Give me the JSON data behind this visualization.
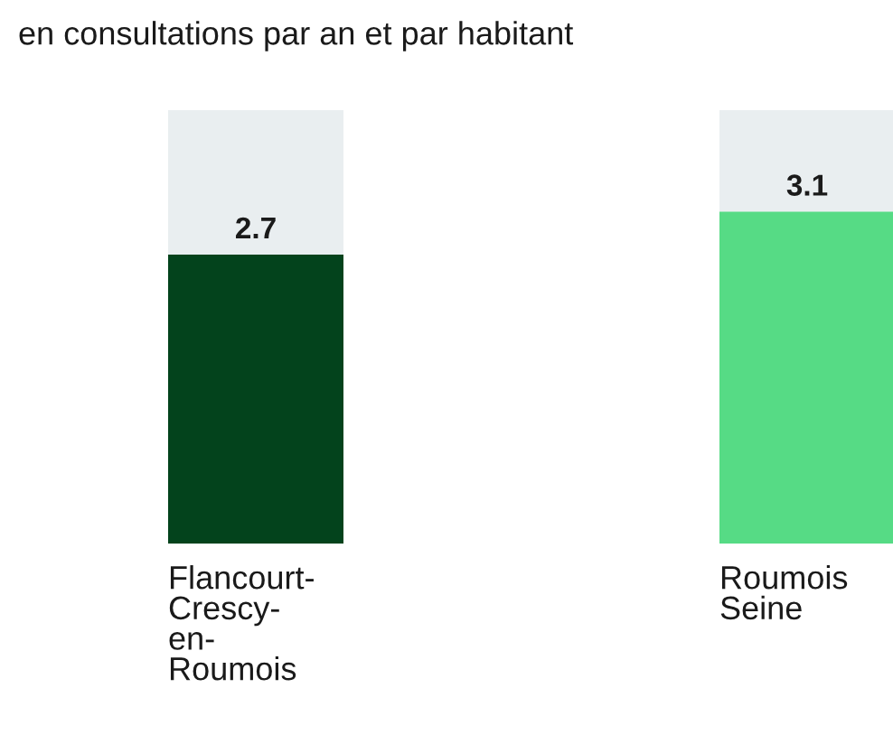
{
  "chart_data": {
    "type": "bar",
    "title": "en consultations par an et par habitant",
    "categories": [
      "Flancourt-Crescy-en-Roumois",
      "Roumois Seine"
    ],
    "values": [
      2.7,
      3.1
    ],
    "colors": [
      "#03431c",
      "#56db85"
    ],
    "ylim": [
      0,
      4.05
    ],
    "data_labels": true,
    "legend": false
  }
}
